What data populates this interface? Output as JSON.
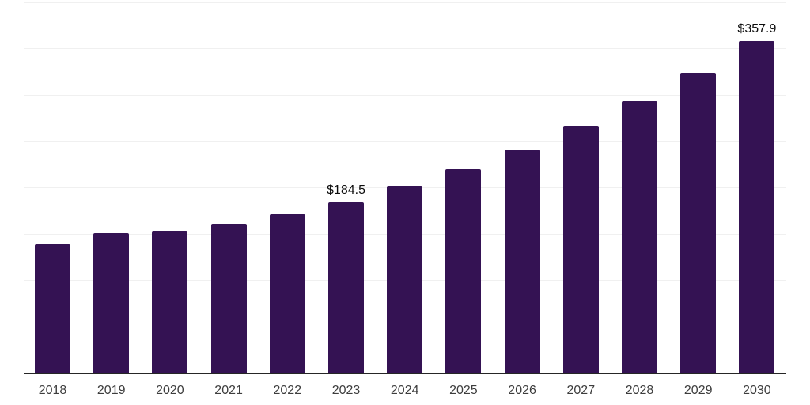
{
  "chart_data": {
    "type": "bar",
    "title": "",
    "xlabel": "",
    "ylabel": "",
    "categories": [
      "2018",
      "2019",
      "2020",
      "2021",
      "2022",
      "2023",
      "2024",
      "2025",
      "2026",
      "2027",
      "2028",
      "2029",
      "2030"
    ],
    "values": [
      139.1,
      151.0,
      153.5,
      161.2,
      171.3,
      184.5,
      201.9,
      220.5,
      241.7,
      267.2,
      293.5,
      324.0,
      357.9
    ],
    "data_labels": [
      "",
      "",
      "",
      "",
      "",
      "$184.5",
      "",
      "",
      "",
      "",
      "",
      "",
      "$357.9"
    ],
    "ylim": [
      0,
      400
    ],
    "gridline_step": 50,
    "grid": "horizontal-only",
    "y_axis_labels_visible": false,
    "legend": "none",
    "bar_color": "#341253",
    "axis_line_color": "#262626",
    "gridline_color": "#f0f0f0",
    "tick_label_color": "#3d3d3d",
    "data_label_color": "#0d0d0d",
    "background_color": "#ffffff"
  }
}
